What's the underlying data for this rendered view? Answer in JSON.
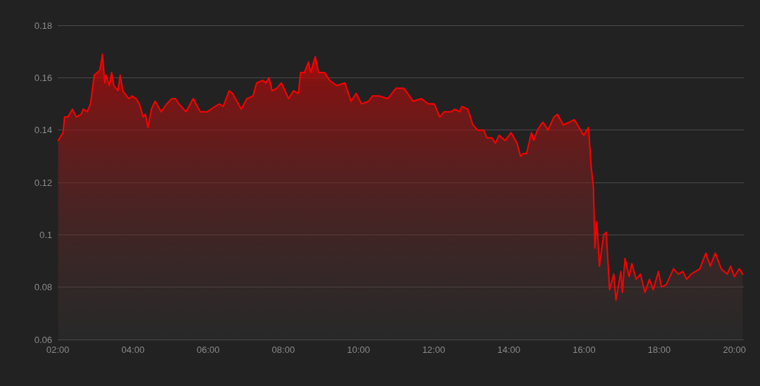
{
  "chart_data": {
    "type": "area",
    "color": "#ff0000",
    "marker": "none",
    "grid": "y",
    "x": [
      2.01,
      2.14,
      2.18,
      2.27,
      2.39,
      2.49,
      2.62,
      2.68,
      2.78,
      2.87,
      2.97,
      3.06,
      3.12,
      3.19,
      3.25,
      3.28,
      3.37,
      3.43,
      3.49,
      3.6,
      3.66,
      3.73,
      3.89,
      3.98,
      4.08,
      4.17,
      4.27,
      4.33,
      4.4,
      4.49,
      4.59,
      4.75,
      4.9,
      5.03,
      5.13,
      5.22,
      5.41,
      5.6,
      5.79,
      5.98,
      6.18,
      6.3,
      6.4,
      6.56,
      6.65,
      6.88,
      7.03,
      7.19,
      7.29,
      7.45,
      7.54,
      7.62,
      7.7,
      7.83,
      7.95,
      8.14,
      8.27,
      8.4,
      8.46,
      8.56,
      8.67,
      8.73,
      8.85,
      8.94,
      9.1,
      9.23,
      9.42,
      9.64,
      9.8,
      9.94,
      10.08,
      10.27,
      10.37,
      10.56,
      10.78,
      11.0,
      11.2,
      11.36,
      11.45,
      11.67,
      11.86,
      12.02,
      12.16,
      12.28,
      12.47,
      12.56,
      12.69,
      12.75,
      12.91,
      13.04,
      13.17,
      13.33,
      13.42,
      13.55,
      13.64,
      13.74,
      13.9,
      14.06,
      14.22,
      14.31,
      14.38,
      14.47,
      14.6,
      14.66,
      14.76,
      14.85,
      14.91,
      15.04,
      15.2,
      15.29,
      15.45,
      15.61,
      15.74,
      15.87,
      15.99,
      16.12,
      16.19,
      16.25,
      16.29,
      16.34,
      16.41,
      16.52,
      16.59,
      16.68,
      16.79,
      16.85,
      16.98,
      17.02,
      17.09,
      17.2,
      17.27,
      17.39,
      17.5,
      17.62,
      17.74,
      17.84,
      17.98,
      18.06,
      18.19,
      18.38,
      18.51,
      18.63,
      18.73,
      18.85,
      19.08,
      19.24,
      19.36,
      19.49,
      19.65,
      19.81,
      19.9,
      20.0,
      20.13,
      20.22
    ],
    "values": [
      0.136,
      0.139,
      0.145,
      0.145,
      0.148,
      0.145,
      0.146,
      0.148,
      0.147,
      0.15,
      0.161,
      0.162,
      0.163,
      0.169,
      0.158,
      0.161,
      0.157,
      0.162,
      0.157,
      0.155,
      0.161,
      0.155,
      0.152,
      0.153,
      0.152,
      0.15,
      0.145,
      0.146,
      0.141,
      0.148,
      0.151,
      0.147,
      0.15,
      0.152,
      0.152,
      0.15,
      0.147,
      0.152,
      0.147,
      0.147,
      0.149,
      0.15,
      0.149,
      0.155,
      0.154,
      0.148,
      0.152,
      0.153,
      0.158,
      0.159,
      0.158,
      0.16,
      0.155,
      0.156,
      0.158,
      0.152,
      0.155,
      0.154,
      0.162,
      0.162,
      0.166,
      0.162,
      0.168,
      0.162,
      0.162,
      0.159,
      0.157,
      0.158,
      0.151,
      0.154,
      0.15,
      0.151,
      0.153,
      0.153,
      0.152,
      0.156,
      0.156,
      0.153,
      0.151,
      0.152,
      0.15,
      0.15,
      0.145,
      0.147,
      0.147,
      0.148,
      0.147,
      0.149,
      0.148,
      0.142,
      0.14,
      0.14,
      0.137,
      0.137,
      0.135,
      0.138,
      0.136,
      0.139,
      0.135,
      0.13,
      0.131,
      0.131,
      0.139,
      0.136,
      0.14,
      0.142,
      0.143,
      0.14,
      0.145,
      0.146,
      0.142,
      0.143,
      0.144,
      0.141,
      0.138,
      0.141,
      0.126,
      0.118,
      0.095,
      0.105,
      0.088,
      0.1,
      0.101,
      0.079,
      0.085,
      0.075,
      0.086,
      0.078,
      0.091,
      0.084,
      0.089,
      0.083,
      0.085,
      0.078,
      0.083,
      0.079,
      0.086,
      0.08,
      0.081,
      0.087,
      0.085,
      0.086,
      0.083,
      0.085,
      0.087,
      0.093,
      0.088,
      0.093,
      0.087,
      0.085,
      0.088,
      0.084,
      0.087,
      0.085
    ],
    "xlim": [
      2,
      20.25
    ],
    "xticks": [
      {
        "value": 2,
        "label": "02:00"
      },
      {
        "value": 4,
        "label": "04:00"
      },
      {
        "value": 6,
        "label": "06:00"
      },
      {
        "value": 8,
        "label": "08:00"
      },
      {
        "value": 10,
        "label": "10:00"
      },
      {
        "value": 12,
        "label": "12:00"
      },
      {
        "value": 14,
        "label": "14:00"
      },
      {
        "value": 16,
        "label": "16:00"
      },
      {
        "value": 18,
        "label": "18:00"
      },
      {
        "value": 20,
        "label": "20:00"
      }
    ],
    "ylim": [
      0.06,
      0.18
    ],
    "yticks": [
      0.06,
      0.08,
      0.1,
      0.12,
      0.14,
      0.16,
      0.18
    ]
  }
}
